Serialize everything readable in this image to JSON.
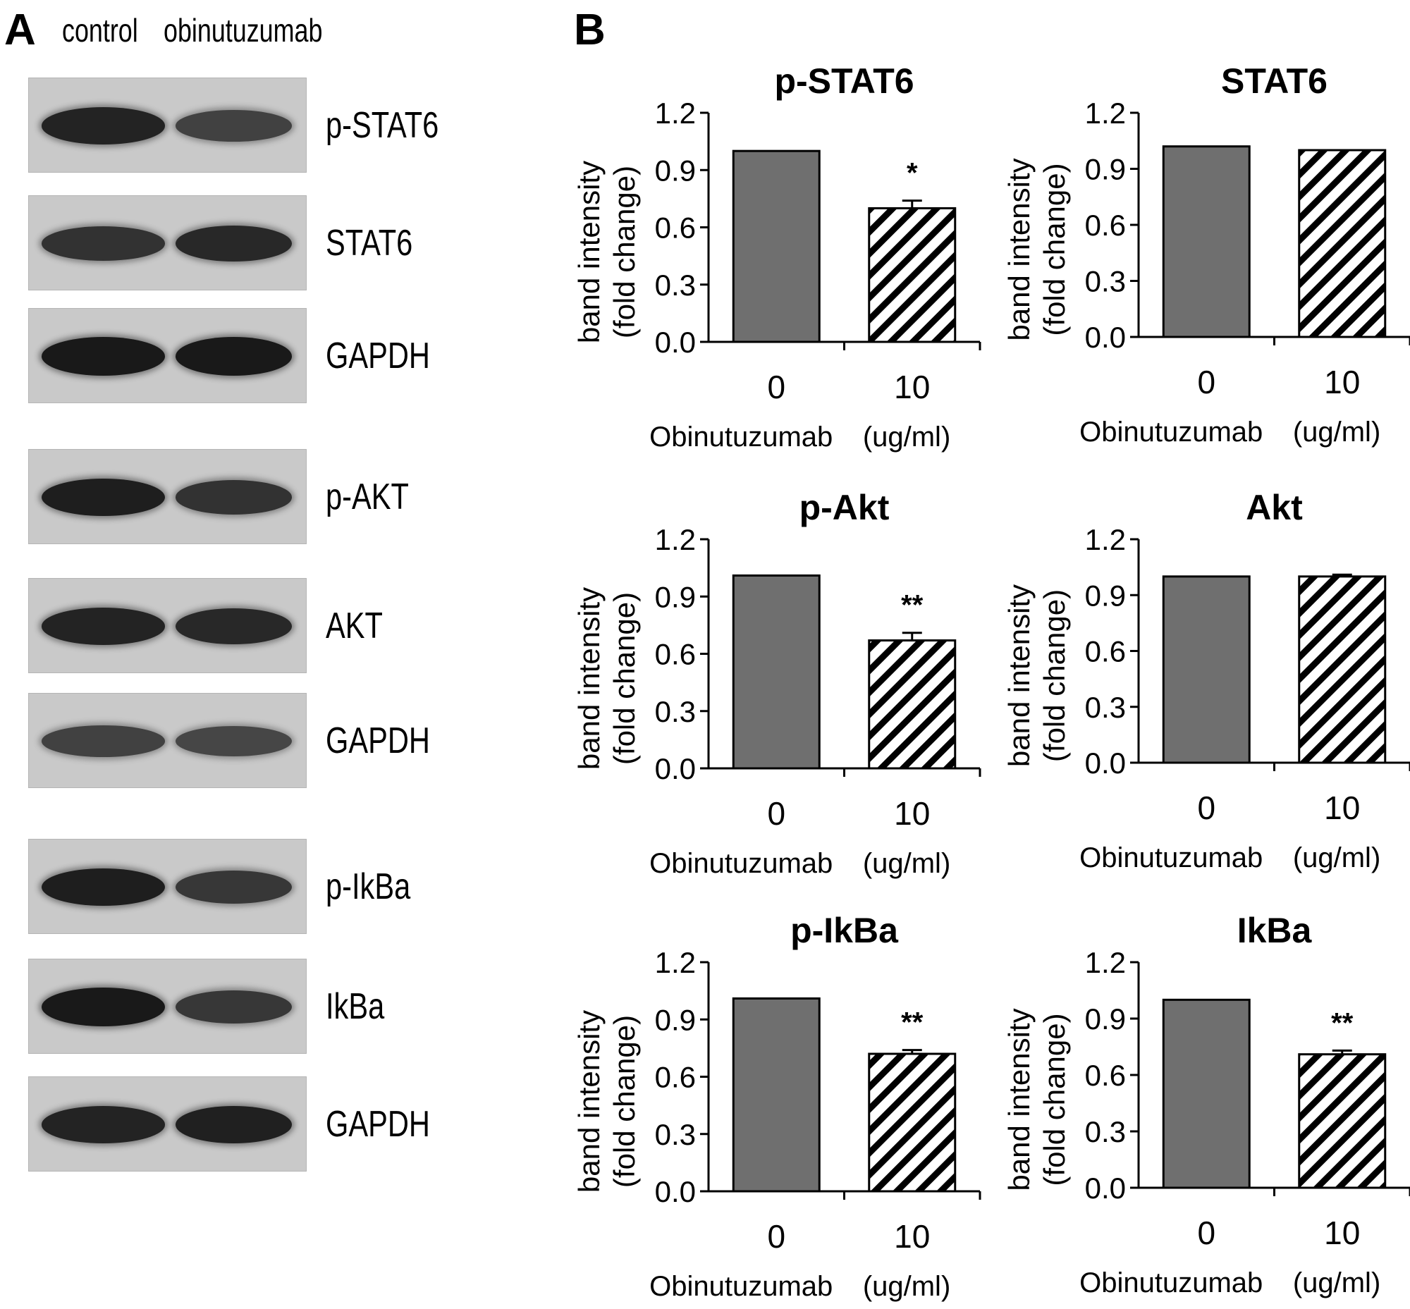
{
  "panel_a": {
    "letter": "A",
    "lanes": [
      "control",
      "obinutuzumab"
    ],
    "blots": [
      {
        "label": "p-STAT6",
        "control_level": 0.85,
        "treated_level": 0.55
      },
      {
        "label": "STAT6",
        "control_level": 0.7,
        "treated_level": 0.8
      },
      {
        "label": "GAPDH",
        "control_level": 0.95,
        "treated_level": 0.95
      },
      {
        "label": "p-AKT",
        "control_level": 0.9,
        "treated_level": 0.7
      },
      {
        "label": "AKT",
        "control_level": 0.85,
        "treated_level": 0.8
      },
      {
        "label": "GAPDH",
        "control_level": 0.55,
        "treated_level": 0.5
      },
      {
        "label": "p-IkBa",
        "control_level": 0.9,
        "treated_level": 0.65
      },
      {
        "label": "IkBa",
        "control_level": 0.95,
        "treated_level": 0.65
      },
      {
        "label": "GAPDH",
        "control_level": 0.85,
        "treated_level": 0.88
      }
    ]
  },
  "panel_b": {
    "letter": "B"
  },
  "chart_data": [
    {
      "type": "bar",
      "title": "p-STAT6",
      "ylabel_line1": "band intensity",
      "ylabel_line2": "(fold change)",
      "xlabel": "Obinutuzumab",
      "xunit": "(ug/ml)",
      "categories": [
        "0",
        "10"
      ],
      "values": [
        1.0,
        0.7
      ],
      "errors": [
        0.0,
        0.04
      ],
      "significance": [
        "",
        "*"
      ],
      "ylim": [
        0,
        1.2
      ],
      "yticks": [
        "0.0",
        "0.3",
        "0.6",
        "0.9",
        "1.2"
      ]
    },
    {
      "type": "bar",
      "title": "STAT6",
      "ylabel_line1": "band intensity",
      "ylabel_line2": "(fold change)",
      "xlabel": "Obinutuzumab",
      "xunit": "(ug/ml)",
      "categories": [
        "0",
        "10"
      ],
      "values": [
        1.02,
        1.0
      ],
      "errors": [
        0.0,
        0.0
      ],
      "significance": [
        "",
        ""
      ],
      "ylim": [
        0,
        1.2
      ],
      "yticks": [
        "0.0",
        "0.3",
        "0.6",
        "0.9",
        "1.2"
      ]
    },
    {
      "type": "bar",
      "title": "p-Akt",
      "ylabel_line1": "band intensity",
      "ylabel_line2": "(fold change)",
      "xlabel": "Obinutuzumab",
      "xunit": "(ug/ml)",
      "categories": [
        "0",
        "10"
      ],
      "values": [
        1.01,
        0.67
      ],
      "errors": [
        0.0,
        0.04
      ],
      "significance": [
        "",
        "**"
      ],
      "ylim": [
        0,
        1.2
      ],
      "yticks": [
        "0.0",
        "0.3",
        "0.6",
        "0.9",
        "1.2"
      ]
    },
    {
      "type": "bar",
      "title": "Akt",
      "ylabel_line1": "band intensity",
      "ylabel_line2": "(fold change)",
      "xlabel": "Obinutuzumab",
      "xunit": "(ug/ml)",
      "categories": [
        "0",
        "10"
      ],
      "values": [
        1.0,
        1.0
      ],
      "errors": [
        0.0,
        0.01
      ],
      "significance": [
        "",
        ""
      ],
      "ylim": [
        0,
        1.2
      ],
      "yticks": [
        "0.0",
        "0.3",
        "0.6",
        "0.9",
        "1.2"
      ]
    },
    {
      "type": "bar",
      "title": "p-IkBa",
      "ylabel_line1": "band intensity",
      "ylabel_line2": "(fold change)",
      "xlabel": "Obinutuzumab",
      "xunit": "(ug/ml)",
      "categories": [
        "0",
        "10"
      ],
      "values": [
        1.01,
        0.72
      ],
      "errors": [
        0.0,
        0.02
      ],
      "significance": [
        "",
        "**"
      ],
      "ylim": [
        0,
        1.2
      ],
      "yticks": [
        "0.0",
        "0.3",
        "0.6",
        "0.9",
        "1.2"
      ]
    },
    {
      "type": "bar",
      "title": "IkBa",
      "ylabel_line1": "band intensity",
      "ylabel_line2": "(fold change)",
      "xlabel": "Obinutuzumab",
      "xunit": "(ug/ml)",
      "categories": [
        "0",
        "10"
      ],
      "values": [
        1.0,
        0.71
      ],
      "errors": [
        0.0,
        0.02
      ],
      "significance": [
        "",
        "**"
      ],
      "ylim": [
        0,
        1.2
      ],
      "yticks": [
        "0.0",
        "0.3",
        "0.6",
        "0.9",
        "1.2"
      ]
    }
  ],
  "colors": {
    "bar_fill": "#6f6f6f",
    "hatch": "#000000",
    "blot_bg": "#c9c9c9",
    "band": "#222222"
  }
}
